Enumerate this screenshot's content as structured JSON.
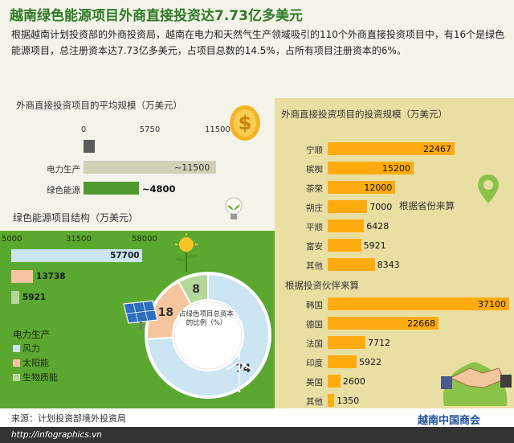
{
  "header": {
    "title": "越南绿色能源项目外商直接投资达7.73亿多美元",
    "intro": "根据越南计划投资部的外商投资局，越南在电力和天然气生产领域吸引的110个外商直接投资项目中，有16个是绿色能源项目，总注册资本达7.73亿多美元，占项目总数的14.5%，占所有项目注册资本的6%。"
  },
  "colors": {
    "title_green": "#2e7a25",
    "bar_grey": "#d3d0b8",
    "bar_green": "#4e9a2e",
    "bar_orange": "#ffab10",
    "panel_green": "#5aa82f",
    "panel_yellow": "#eadfa3",
    "wind": "#cce5f2",
    "solar": "#f6c49f",
    "biomass": "#b4d89a"
  },
  "chart_data": [
    {
      "type": "bar",
      "orientation": "horizontal",
      "title": "外商直接投资项目的平均规模（万美元）",
      "xlim": [
        0,
        11500
      ],
      "xticks": [
        "0",
        "5750",
        "11500"
      ],
      "categories": [
        "",
        "电力生产",
        "绿色能源"
      ],
      "values": [
        950,
        11500,
        4800
      ],
      "value_labels": [
        "",
        "~11500",
        "~4800"
      ]
    },
    {
      "type": "bar",
      "orientation": "horizontal",
      "title": "绿色能源项目结构（万美元）",
      "xticks": [
        "5000",
        "31500",
        "58000"
      ],
      "xlim": [
        5000,
        58000
      ],
      "categories": [
        "风力",
        "太阳能",
        "生物质能"
      ],
      "values": [
        57700,
        13738,
        5921
      ],
      "value_labels": [
        "57700",
        "13738",
        "5921"
      ],
      "legend_title": "电力生产",
      "legend": [
        "风力",
        "太阳能",
        "生物质能"
      ]
    },
    {
      "type": "pie",
      "title": "占绿色项目总资本的比例（%）",
      "categories": [
        "风力",
        "太阳能",
        "生物质能"
      ],
      "values": [
        74,
        18,
        8
      ],
      "value_labels": [
        "74",
        "18",
        "8"
      ]
    },
    {
      "type": "bar",
      "orientation": "horizontal",
      "title": "外商直接投资项目的投资规模（万美元）",
      "subtitle": "根据省份来算",
      "categories": [
        "宁顺",
        "槟椥",
        "茶荣",
        "朔庄",
        "平顺",
        "富安",
        "其他"
      ],
      "values": [
        22467,
        15200,
        12000,
        7000,
        6428,
        5921,
        8343
      ],
      "value_labels": [
        "22467",
        "15200",
        "12000",
        "7000",
        "6428",
        "5921",
        "8343"
      ]
    },
    {
      "type": "bar",
      "orientation": "horizontal",
      "subtitle": "根据投资伙伴来算",
      "categories": [
        "韩国",
        "德国",
        "法国",
        "印度",
        "美国",
        "其他"
      ],
      "values": [
        37100,
        22668,
        7712,
        5922,
        2600,
        1350
      ],
      "value_labels": [
        "37100",
        "22668",
        "7712",
        "5922",
        "2600",
        "1350"
      ]
    }
  ],
  "footer": {
    "source": "来源：计划投资部境外投资局",
    "url": "http://infographics.vn",
    "watermark": "越南中国商会"
  },
  "icons": [
    "dollar-coin-icon",
    "lightbulb-plant-icon",
    "location-pin-icon",
    "handshake-icon",
    "solar-panel-icon",
    "plant-sun-icon",
    "wind-turbine-icon"
  ]
}
